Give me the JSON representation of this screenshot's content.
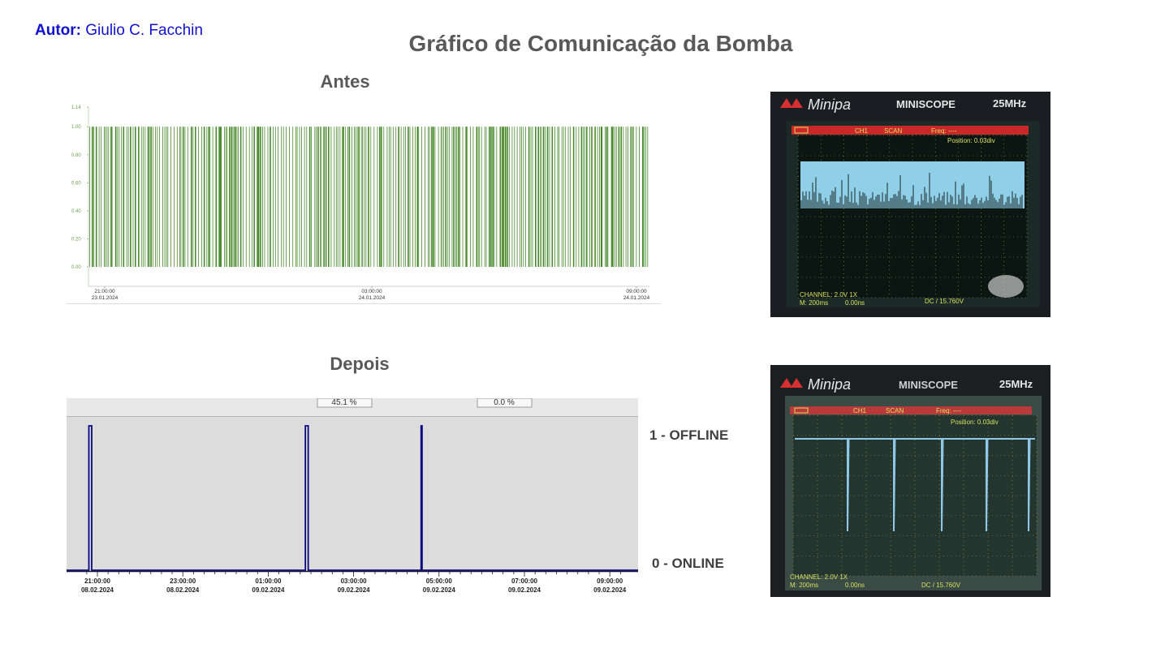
{
  "header": {
    "author_label": "Autor:",
    "author_name": "Giulio C. Facchin",
    "title": "Gráfico de Comunicação da Bomba"
  },
  "before": {
    "title": "Antes",
    "chart": {
      "type": "bar",
      "series_color": "#4a8a2e",
      "y_ticks": [
        "1.14",
        "1.00",
        "0.80",
        "0.60",
        "0.40",
        "0.20",
        "0.00"
      ],
      "x_ticks": [
        {
          "time": "21:00:00",
          "date": "23.01.2024"
        },
        {
          "time": "03:00:00",
          "date": "24.01.2024"
        },
        {
          "time": "09:00:00",
          "date": "24.01.2024"
        }
      ]
    }
  },
  "after": {
    "title": "Depois",
    "toolbar": {
      "field1": "45.1 %",
      "field2": "0.0 %"
    },
    "chart": {
      "type": "line",
      "series_color": "#0a0a80",
      "x_ticks": [
        {
          "time": "21:00:00",
          "date": "08.02.2024"
        },
        {
          "time": "23:00:00",
          "date": "08.02.2024"
        },
        {
          "time": "01:00:00",
          "date": "09.02.2024"
        },
        {
          "time": "03:00:00",
          "date": "09.02.2024"
        },
        {
          "time": "05:00:00",
          "date": "09.02.2024"
        },
        {
          "time": "07:00:00",
          "date": "09.02.2024"
        },
        {
          "time": "09:00:00",
          "date": "09.02.2024"
        }
      ]
    },
    "state_high": "1 - OFFLINE",
    "state_low": "0 - ONLINE"
  },
  "chart_data": [
    {
      "type": "bar",
      "title": "Antes",
      "xlabel": "",
      "ylabel": "",
      "ylim": [
        0,
        1.14
      ],
      "x_range": [
        "23.01.2024 20:40",
        "24.01.2024 09:40"
      ],
      "description_values": "binary signal, bars at value 1.00 densely distributed across the whole range",
      "series": [
        {
          "values": [
            1.0
          ]
        }
      ]
    },
    {
      "type": "line",
      "title": "Depois",
      "xlabel": "",
      "ylabel": "",
      "ylim": [
        0,
        1
      ],
      "x_range": [
        "08.02.2024 20:30",
        "09.02.2024 09:25"
      ],
      "series": [
        {
          "x": [
            "08.02.2024 20:48",
            "09.02.2024 01:52",
            "09.02.2024 04:35"
          ],
          "values": [
            1,
            1,
            1
          ]
        }
      ]
    }
  ],
  "scopes": [
    {
      "brand": "Minipa",
      "model": "MINISCOPE",
      "bandwidth": "25MHz",
      "status": [
        "CH1",
        "SCAN",
        "Freq: ----"
      ],
      "position": "Position: 0.03div",
      "channel": "CHANNEL: 2.0V  1X",
      "timebase": "M: 200ms",
      "offset": "0.00ns",
      "trigger": "DC / 15.760V"
    },
    {
      "brand": "Minipa",
      "model": "MINISCOPE",
      "bandwidth": "25MHz",
      "status": [
        "CH1",
        "SCAN",
        "Freq: ----"
      ],
      "position": "Position: 0.03div",
      "channel": "CHANNEL: 2.0V  1X",
      "timebase": "M: 200ms",
      "offset": "0.00ns",
      "trigger": "DC / 15.760V"
    }
  ]
}
